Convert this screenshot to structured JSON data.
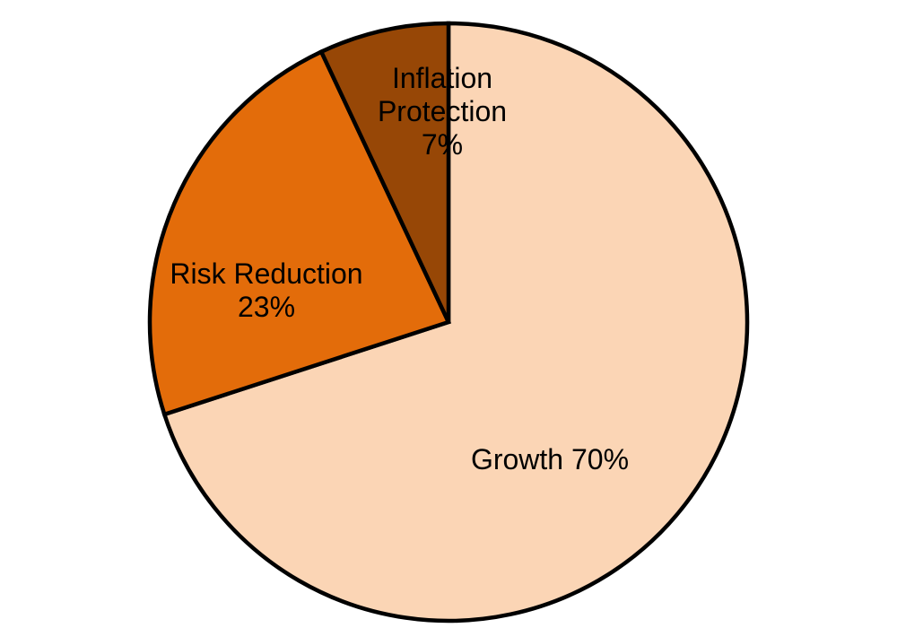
{
  "chart_data": {
    "type": "pie",
    "title": "",
    "categories": [
      "Growth",
      "Risk Reduction",
      "Inflation Protection"
    ],
    "values": [
      70,
      23,
      7
    ],
    "unit": "%",
    "start_angle_deg": 0,
    "direction": "clockwise",
    "slices": [
      {
        "label": "Growth",
        "value": 70,
        "color": "#FBD5B5"
      },
      {
        "label": "Risk Reduction",
        "value": 23,
        "color": "#E36C0A"
      },
      {
        "label": "Inflation Protection",
        "value": 7,
        "color": "#974706"
      }
    ],
    "stroke": {
      "color": "#000000",
      "width": 4.5
    },
    "background": "#FFFFFF",
    "legend": "none",
    "data_labels": "inside",
    "label_color": "#000000"
  },
  "labels": {
    "growth": "Growth 70%",
    "risk_reduction": "Risk Reduction\n23%",
    "inflation_protection": "Inflation\nProtection\n7%"
  }
}
